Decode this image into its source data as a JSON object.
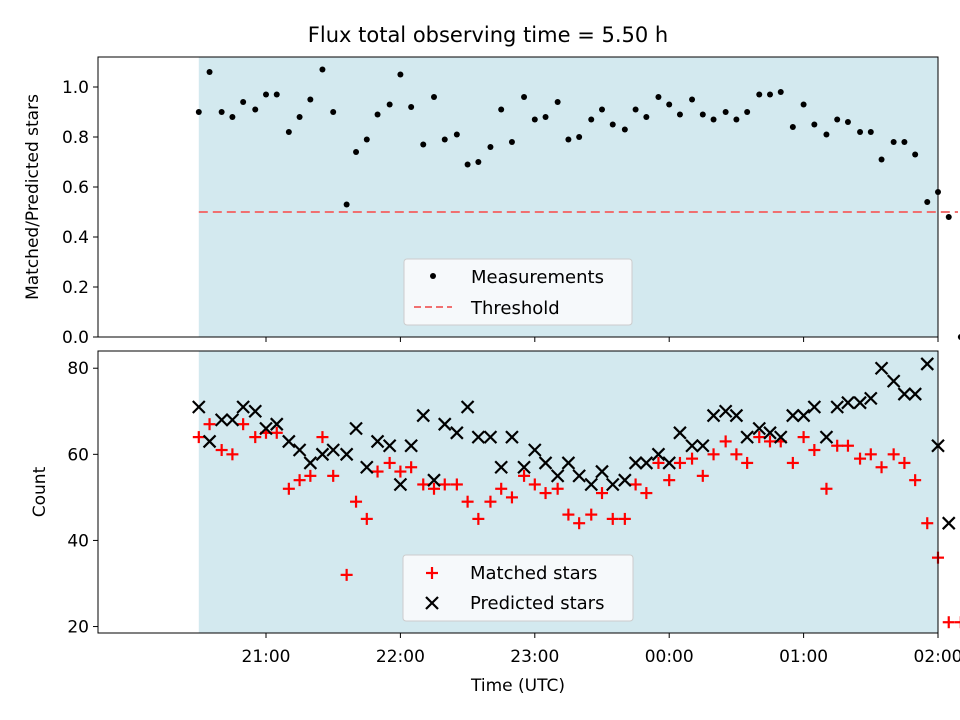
{
  "colors": {
    "observing_band": "#d3e9ef",
    "measurement": "#000000",
    "threshold": "#f07070",
    "matched": "#ff0000",
    "predicted": "#000000"
  },
  "chart_data": [
    {
      "type": "scatter",
      "title": "Flux total observing time = 5.50 h",
      "xlabel": "",
      "ylabel": "Matched/Predicted stars",
      "x_unit": "hours since 20:00 UTC",
      "xlim": [
        19.75,
        26.0
      ],
      "ylim": [
        0.0,
        1.12
      ],
      "yticks": [
        0.0,
        0.2,
        0.4,
        0.6,
        0.8,
        1.0
      ],
      "ytick_labels": [
        "0.0",
        "0.2",
        "0.4",
        "0.6",
        "0.8",
        "1.0"
      ],
      "observing_span": [
        20.5,
        26.0
      ],
      "threshold": {
        "y": 0.5,
        "x": [
          20.5,
          26.0
        ]
      },
      "legend": {
        "location": "lower center",
        "entries": [
          "Measurements",
          "Threshold"
        ]
      },
      "series": [
        {
          "name": "Measurements",
          "marker": "dot",
          "x": [
            20.5,
            20.58,
            20.67,
            20.75,
            20.83,
            20.92,
            21.0,
            21.08,
            21.17,
            21.25,
            21.33,
            21.42,
            21.5,
            21.6,
            21.67,
            21.75,
            21.83,
            21.92,
            22.0,
            22.08,
            22.17,
            22.25,
            22.33,
            22.42,
            22.5,
            22.58,
            22.67,
            22.75,
            22.83,
            22.92,
            23.0,
            23.08,
            23.17,
            23.25,
            23.33,
            23.42,
            23.5,
            23.58,
            23.67,
            23.75,
            23.83,
            23.92,
            24.0,
            24.08,
            24.17,
            24.25,
            24.33,
            24.42,
            24.5,
            24.58,
            24.67,
            24.75,
            24.83,
            24.92,
            25.0,
            25.08,
            25.17,
            25.25,
            25.33,
            25.42,
            25.5,
            25.58,
            25.67,
            25.75,
            25.83,
            25.92,
            26.0,
            26.08,
            26.17
          ],
          "y": [
            0.9,
            1.06,
            0.9,
            0.88,
            0.94,
            0.91,
            0.97,
            0.97,
            0.82,
            0.88,
            0.95,
            1.07,
            0.9,
            0.53,
            0.74,
            0.79,
            0.89,
            0.93,
            1.05,
            0.92,
            0.77,
            0.96,
            0.79,
            0.81,
            0.69,
            0.7,
            0.76,
            0.91,
            0.78,
            0.96,
            0.87,
            0.88,
            0.94,
            0.79,
            0.8,
            0.87,
            0.91,
            0.85,
            0.83,
            0.91,
            0.88,
            0.96,
            0.93,
            0.89,
            0.95,
            0.89,
            0.87,
            0.9,
            0.87,
            0.9,
            0.97,
            0.97,
            0.98,
            0.84,
            0.93,
            0.85,
            0.81,
            0.87,
            0.86,
            0.82,
            0.82,
            0.71,
            0.78,
            0.78,
            0.73,
            0.54,
            0.58,
            0.48,
            0.0
          ]
        }
      ]
    },
    {
      "type": "scatter",
      "title": "",
      "xlabel": "Time (UTC)",
      "ylabel": "Count",
      "x_unit": "hours since 20:00 UTC",
      "xlim": [
        19.75,
        26.0
      ],
      "ylim": [
        18.5,
        84.0
      ],
      "yticks": [
        20,
        40,
        60,
        80
      ],
      "ytick_labels": [
        "20",
        "40",
        "60",
        "80"
      ],
      "xticks": [
        21,
        22,
        23,
        24,
        25,
        26
      ],
      "xtick_labels": [
        "21:00",
        "22:00",
        "23:00",
        "00:00",
        "01:00",
        "02:00"
      ],
      "observing_span": [
        20.5,
        26.0
      ],
      "legend": {
        "location": "lower center",
        "entries": [
          "Matched stars",
          "Predicted stars"
        ]
      },
      "series": [
        {
          "name": "Matched stars",
          "marker": "plus",
          "x": [
            20.5,
            20.58,
            20.67,
            20.75,
            20.83,
            20.92,
            21.0,
            21.08,
            21.17,
            21.25,
            21.33,
            21.42,
            21.5,
            21.6,
            21.67,
            21.75,
            21.83,
            21.92,
            22.0,
            22.08,
            22.17,
            22.25,
            22.33,
            22.42,
            22.5,
            22.58,
            22.67,
            22.75,
            22.83,
            22.92,
            23.0,
            23.08,
            23.17,
            23.25,
            23.33,
            23.42,
            23.5,
            23.58,
            23.67,
            23.75,
            23.83,
            23.92,
            24.0,
            24.08,
            24.17,
            24.25,
            24.33,
            24.42,
            24.5,
            24.58,
            24.67,
            24.75,
            24.83,
            24.92,
            25.0,
            25.08,
            25.17,
            25.25,
            25.33,
            25.42,
            25.5,
            25.58,
            25.67,
            25.75,
            25.83,
            25.92,
            26.0,
            26.08,
            26.17
          ],
          "y": [
            64,
            67,
            61,
            60,
            67,
            64,
            65,
            65,
            52,
            54,
            55,
            64,
            55,
            32,
            49,
            45,
            56,
            58,
            56,
            57,
            53,
            52,
            53,
            53,
            49,
            45,
            49,
            52,
            50,
            55,
            53,
            51,
            52,
            46,
            44,
            46,
            51,
            45,
            45,
            53,
            51,
            58,
            54,
            58,
            59,
            55,
            60,
            63,
            60,
            58,
            64,
            63,
            63,
            58,
            64,
            61,
            52,
            62,
            62,
            59,
            60,
            57,
            60,
            58,
            54,
            44,
            36,
            21,
            21
          ]
        },
        {
          "name": "Predicted stars",
          "marker": "x",
          "x": [
            20.5,
            20.58,
            20.67,
            20.75,
            20.83,
            20.92,
            21.0,
            21.08,
            21.17,
            21.25,
            21.33,
            21.42,
            21.5,
            21.6,
            21.67,
            21.75,
            21.83,
            21.92,
            22.0,
            22.08,
            22.17,
            22.25,
            22.33,
            22.42,
            22.5,
            22.58,
            22.67,
            22.75,
            22.83,
            22.92,
            23.0,
            23.08,
            23.17,
            23.25,
            23.33,
            23.42,
            23.5,
            23.58,
            23.67,
            23.75,
            23.83,
            23.92,
            24.0,
            24.08,
            24.17,
            24.25,
            24.33,
            24.42,
            24.5,
            24.58,
            24.67,
            24.75,
            24.83,
            24.92,
            25.0,
            25.08,
            25.17,
            25.25,
            25.33,
            25.42,
            25.5,
            25.58,
            25.67,
            25.75,
            25.83,
            25.92,
            26.0,
            26.08
          ],
          "y": [
            71,
            63,
            68,
            68,
            71,
            70,
            66,
            67,
            63,
            61,
            58,
            60,
            61,
            60,
            66,
            57,
            63,
            62,
            53,
            62,
            69,
            54,
            67,
            65,
            71,
            64,
            64,
            57,
            64,
            57,
            61,
            58,
            55,
            58,
            55,
            53,
            56,
            53,
            54,
            58,
            58,
            60,
            58,
            65,
            62,
            62,
            69,
            70,
            69,
            64,
            66,
            65,
            64,
            69,
            69,
            71,
            64,
            71,
            72,
            72,
            73,
            80,
            77,
            74,
            74,
            81,
            62,
            44
          ]
        }
      ]
    }
  ]
}
